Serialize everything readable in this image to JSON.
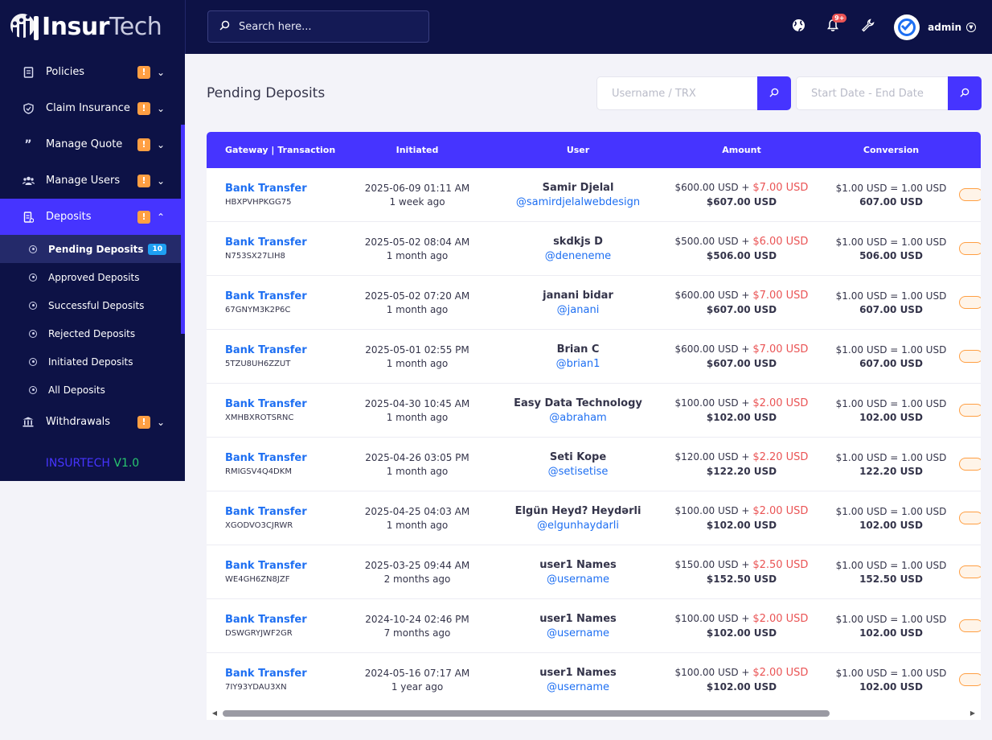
{
  "app": {
    "logo_main": "Insur",
    "logo_accent": "Tech",
    "version_brand": "INSURTECH",
    "version_number": "V1.0"
  },
  "colors": {
    "sidebar_bg": "#0d1246",
    "primary": "#4634ff",
    "link": "#1e6ff2",
    "charge": "#ea5455",
    "warning": "#ff9f43",
    "version_green": "#28c76f"
  },
  "sidebar": {
    "items": [
      {
        "label": "Policies",
        "icon": "document-icon",
        "badge": "!",
        "expanded": false
      },
      {
        "label": "Claim Insurance",
        "icon": "shield-icon",
        "badge": "!",
        "expanded": false
      },
      {
        "label": "Manage Quote",
        "icon": "quote-icon",
        "badge": "!",
        "expanded": false
      },
      {
        "label": "Manage Users",
        "icon": "users-icon",
        "badge": "!",
        "expanded": false
      },
      {
        "label": "Deposits",
        "icon": "deposit-icon",
        "badge": "!",
        "expanded": true
      },
      {
        "label": "Withdrawals",
        "icon": "bank-icon",
        "badge": "!",
        "expanded": false
      }
    ],
    "deposit_sub": [
      {
        "label": "Pending Deposits",
        "count": "10"
      },
      {
        "label": "Approved Deposits"
      },
      {
        "label": "Successful Deposits"
      },
      {
        "label": "Rejected Deposits"
      },
      {
        "label": "Initiated Deposits"
      },
      {
        "label": "All Deposits"
      }
    ]
  },
  "topbar": {
    "search_placeholder": "Search here...",
    "notifications_badge": "9+",
    "user_name": "admin"
  },
  "page": {
    "title": "Pending Deposits",
    "filter_search_placeholder": "Username / TRX",
    "filter_date_placeholder": "Start Date - End Date"
  },
  "table": {
    "headers": [
      "Gateway | Transaction",
      "Initiated",
      "User",
      "Amount",
      "Conversion"
    ],
    "rows": [
      {
        "gateway": "Bank Transfer",
        "trx": "HBXPVHPKGG75",
        "date": "2025-06-09 01:11 AM",
        "ago": "1 week ago",
        "name": "Samir Djelal",
        "handle": "@samirdjelalwebdesign",
        "amount": "$600.00 USD +",
        "charge": "$7.00 USD",
        "total": "$607.00 USD",
        "rate": "$1.00 USD = 1.00 USD",
        "converted": "607.00 USD"
      },
      {
        "gateway": "Bank Transfer",
        "trx": "N753SX27LIH8",
        "date": "2025-05-02 08:04 AM",
        "ago": "1 month ago",
        "name": "skdkjs D",
        "handle": "@deneneme",
        "amount": "$500.00 USD +",
        "charge": "$6.00 USD",
        "total": "$506.00 USD",
        "rate": "$1.00 USD = 1.00 USD",
        "converted": "506.00 USD"
      },
      {
        "gateway": "Bank Transfer",
        "trx": "67GNYM3K2P6C",
        "date": "2025-05-02 07:20 AM",
        "ago": "1 month ago",
        "name": "janani bidar",
        "handle": "@janani",
        "amount": "$600.00 USD +",
        "charge": "$7.00 USD",
        "total": "$607.00 USD",
        "rate": "$1.00 USD = 1.00 USD",
        "converted": "607.00 USD"
      },
      {
        "gateway": "Bank Transfer",
        "trx": "5TZU8UH6ZZUT",
        "date": "2025-05-01 02:55 PM",
        "ago": "1 month ago",
        "name": "Brian C",
        "handle": "@brian1",
        "amount": "$600.00 USD +",
        "charge": "$7.00 USD",
        "total": "$607.00 USD",
        "rate": "$1.00 USD = 1.00 USD",
        "converted": "607.00 USD"
      },
      {
        "gateway": "Bank Transfer",
        "trx": "XMHBXROTSRNC",
        "date": "2025-04-30 10:45 AM",
        "ago": "1 month ago",
        "name": "Easy Data Technology",
        "handle": "@abraham",
        "amount": "$100.00 USD +",
        "charge": "$2.00 USD",
        "total": "$102.00 USD",
        "rate": "$1.00 USD = 1.00 USD",
        "converted": "102.00 USD"
      },
      {
        "gateway": "Bank Transfer",
        "trx": "RMIGSV4Q4DKM",
        "date": "2025-04-26 03:05 PM",
        "ago": "1 month ago",
        "name": "Seti Kope",
        "handle": "@setisetise",
        "amount": "$120.00 USD +",
        "charge": "$2.20 USD",
        "total": "$122.20 USD",
        "rate": "$1.00 USD = 1.00 USD",
        "converted": "122.20 USD"
      },
      {
        "gateway": "Bank Transfer",
        "trx": "XGODVO3CJRWR",
        "date": "2025-04-25 04:03 AM",
        "ago": "1 month ago",
        "name": "Elgün Heyd? Heydərli",
        "handle": "@elgunhaydarli",
        "amount": "$100.00 USD +",
        "charge": "$2.00 USD",
        "total": "$102.00 USD",
        "rate": "$1.00 USD = 1.00 USD",
        "converted": "102.00 USD"
      },
      {
        "gateway": "Bank Transfer",
        "trx": "WE4GH6ZN8JZF",
        "date": "2025-03-25 09:44 AM",
        "ago": "2 months ago",
        "name": "user1 Names",
        "handle": "@username",
        "amount": "$150.00 USD +",
        "charge": "$2.50 USD",
        "total": "$152.50 USD",
        "rate": "$1.00 USD = 1.00 USD",
        "converted": "152.50 USD"
      },
      {
        "gateway": "Bank Transfer",
        "trx": "DSWGRYJWF2GR",
        "date": "2024-10-24 02:46 PM",
        "ago": "7 months ago",
        "name": "user1 Names",
        "handle": "@username",
        "amount": "$100.00 USD +",
        "charge": "$2.00 USD",
        "total": "$102.00 USD",
        "rate": "$1.00 USD = 1.00 USD",
        "converted": "102.00 USD"
      },
      {
        "gateway": "Bank Transfer",
        "trx": "7IY93YDAU3XN",
        "date": "2024-05-16 07:17 AM",
        "ago": "1 year ago",
        "name": "user1 Names",
        "handle": "@username",
        "amount": "$100.00 USD +",
        "charge": "$2.00 USD",
        "total": "$102.00 USD",
        "rate": "$1.00 USD = 1.00 USD",
        "converted": "102.00 USD"
      }
    ]
  }
}
